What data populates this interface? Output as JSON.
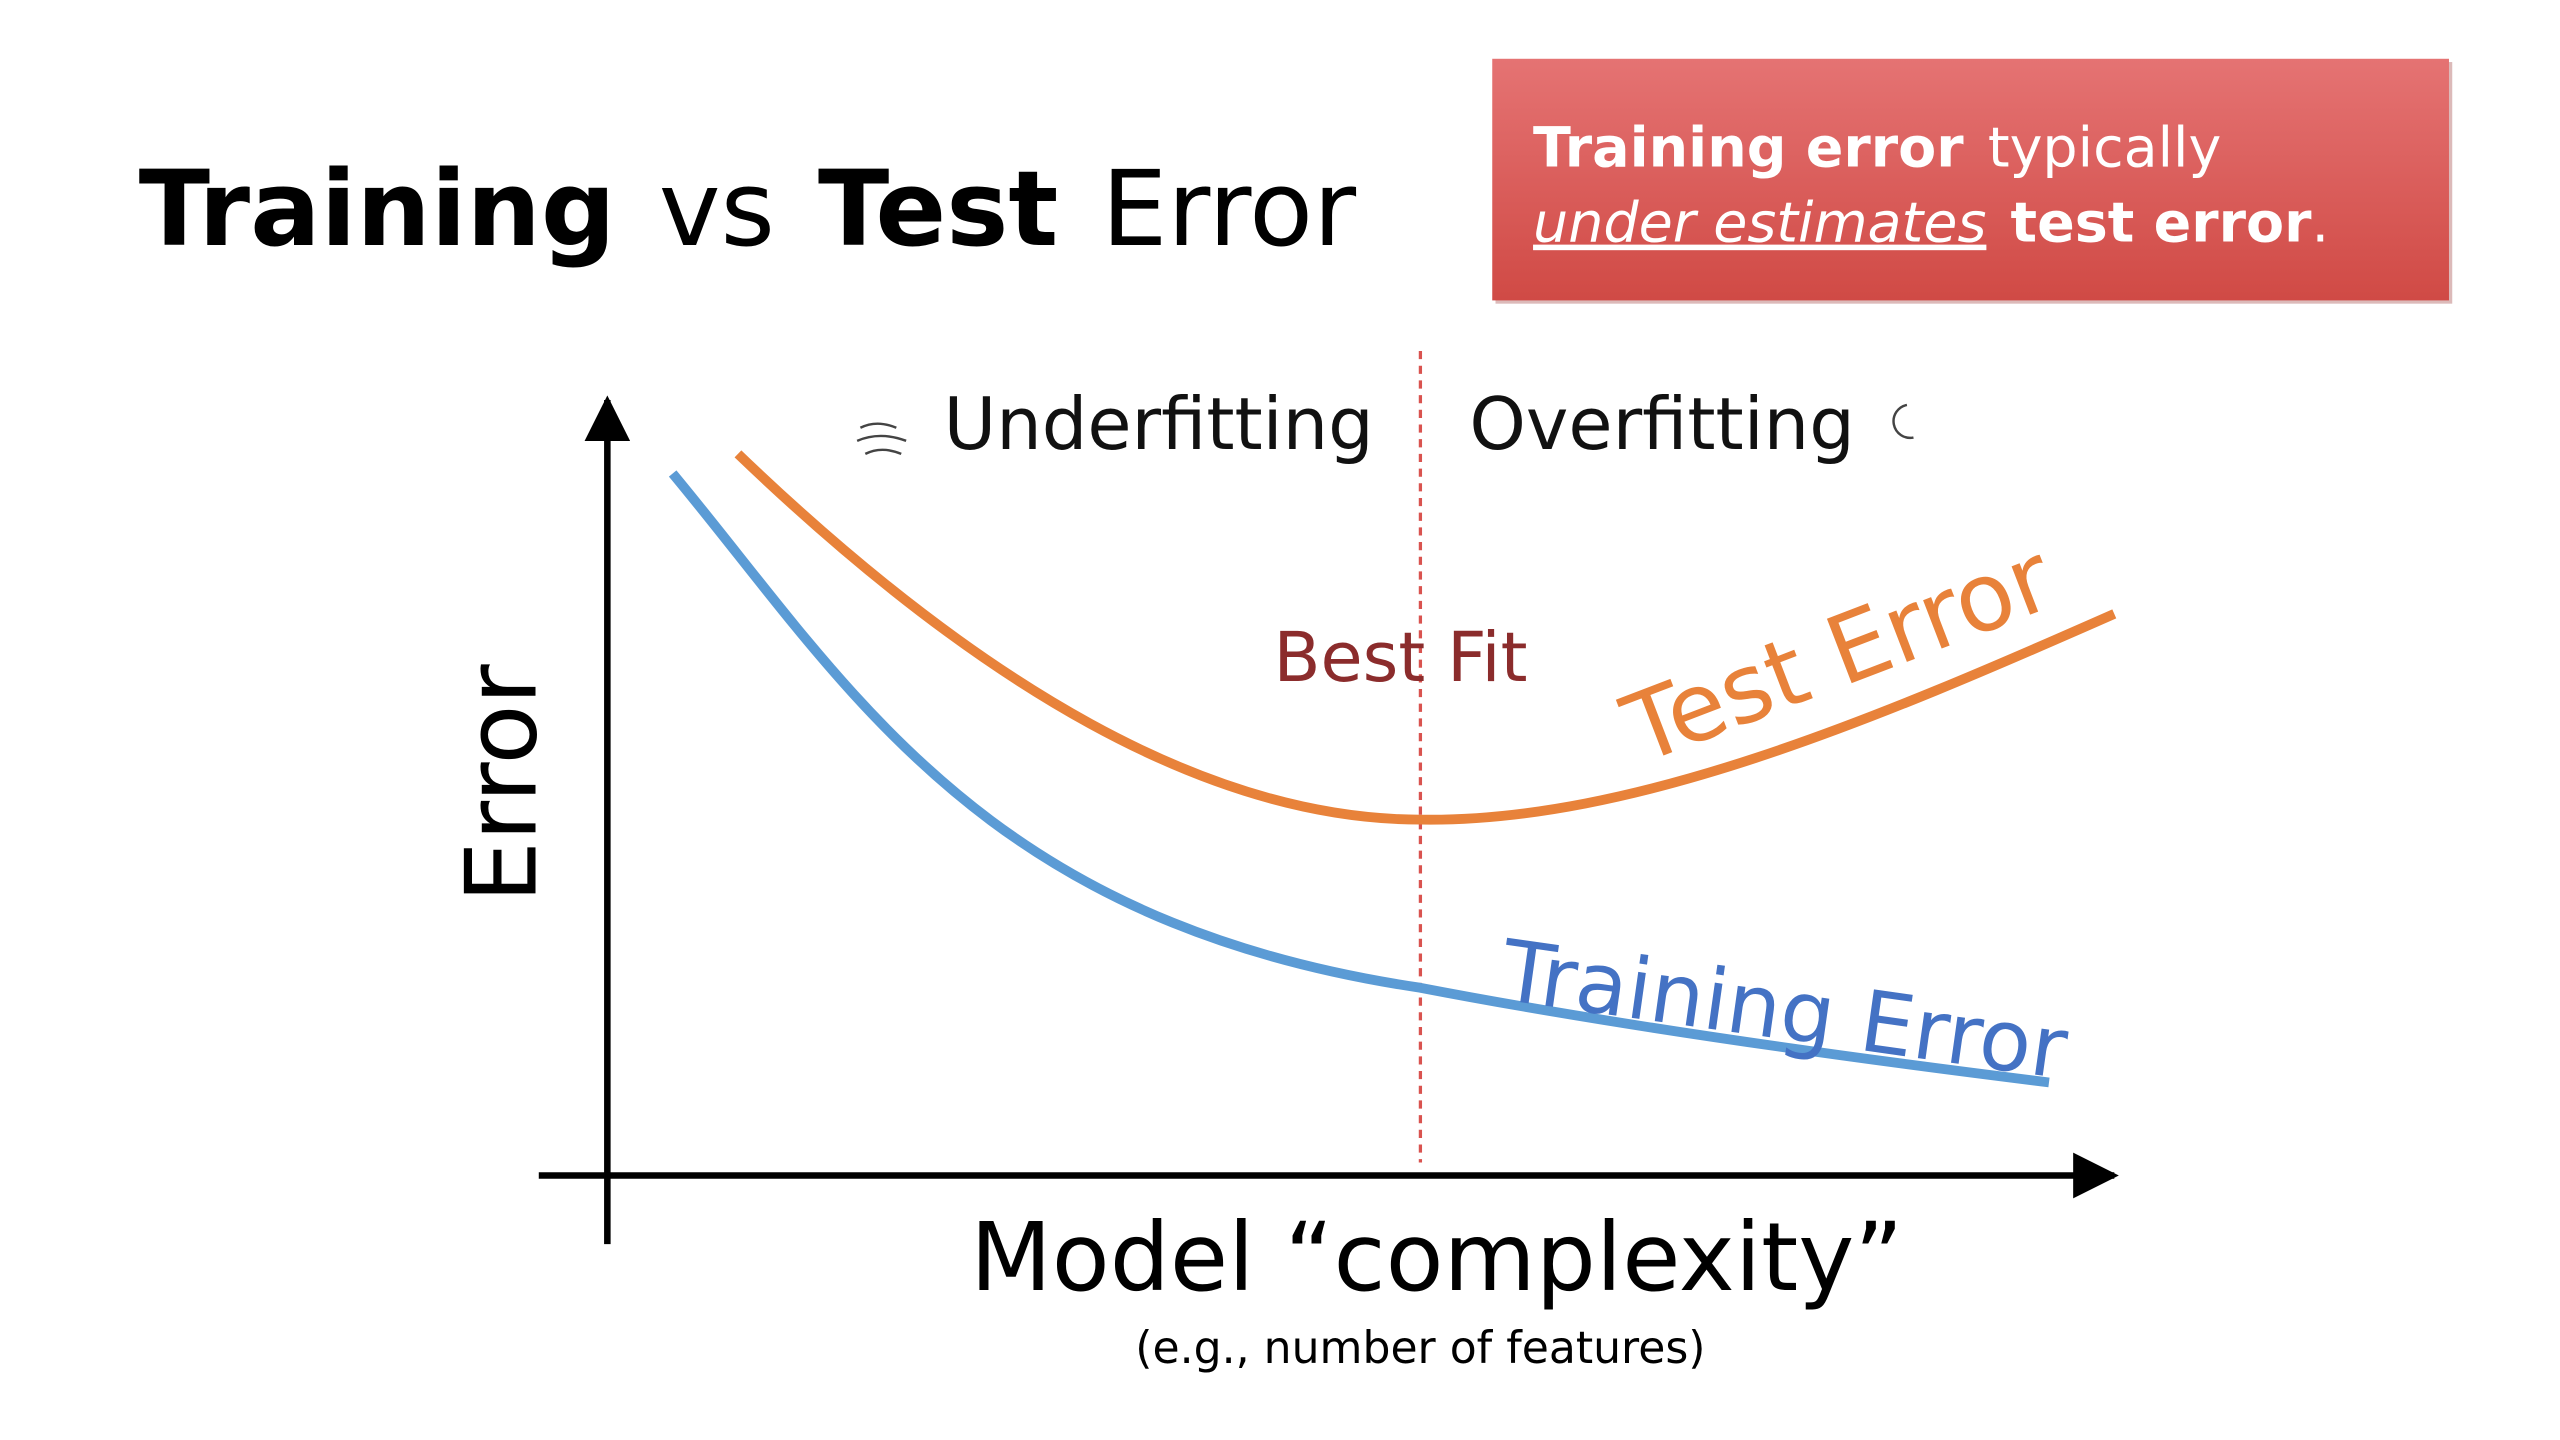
{
  "title": {
    "word1": "Training",
    "word2": "vs",
    "word3": "Test",
    "word4": "Error"
  },
  "callout": {
    "part1": "Training error",
    "part2": "typically",
    "part3": "under estimates",
    "part4": "test error",
    "part5": "."
  },
  "diagram": {
    "underfitting": "Underfitting",
    "overfitting": "Overfitting",
    "best_fit": "Best Fit",
    "test_error": "Test Error",
    "training_error": "Training Error",
    "y_axis": "Error",
    "x_axis": "Model “complexity”",
    "x_axis_note": "(e.g., number of features)"
  }
}
